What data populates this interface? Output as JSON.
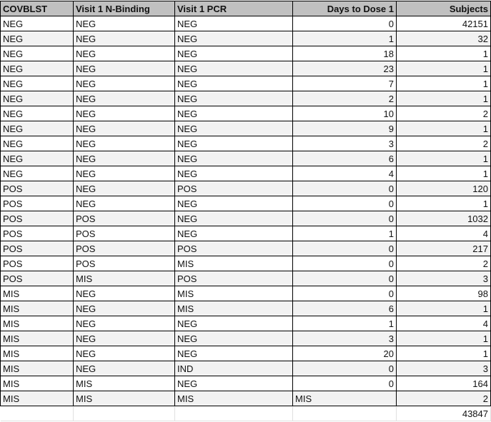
{
  "headers": [
    "COVBLST",
    "Visit 1 N-Binding",
    "Visit 1 PCR",
    "Days to Dose 1",
    "Subjects"
  ],
  "rows": [
    [
      "NEG",
      "NEG",
      "NEG",
      "0",
      "42151"
    ],
    [
      "NEG",
      "NEG",
      "NEG",
      "1",
      "32"
    ],
    [
      "NEG",
      "NEG",
      "NEG",
      "18",
      "1"
    ],
    [
      "NEG",
      "NEG",
      "NEG",
      "23",
      "1"
    ],
    [
      "NEG",
      "NEG",
      "NEG",
      "7",
      "1"
    ],
    [
      "NEG",
      "NEG",
      "NEG",
      "2",
      "1"
    ],
    [
      "NEG",
      "NEG",
      "NEG",
      "10",
      "2"
    ],
    [
      "NEG",
      "NEG",
      "NEG",
      "9",
      "1"
    ],
    [
      "NEG",
      "NEG",
      "NEG",
      "3",
      "2"
    ],
    [
      "NEG",
      "NEG",
      "NEG",
      "6",
      "1"
    ],
    [
      "NEG",
      "NEG",
      "NEG",
      "4",
      "1"
    ],
    [
      "POS",
      "NEG",
      "POS",
      "0",
      "120"
    ],
    [
      "POS",
      "NEG",
      "NEG",
      "0",
      "1"
    ],
    [
      "POS",
      "POS",
      "NEG",
      "0",
      "1032"
    ],
    [
      "POS",
      "POS",
      "NEG",
      "1",
      "4"
    ],
    [
      "POS",
      "POS",
      "POS",
      "0",
      "217"
    ],
    [
      "POS",
      "POS",
      "MIS",
      "0",
      "2"
    ],
    [
      "POS",
      "MIS",
      "POS",
      "0",
      "3"
    ],
    [
      "MIS",
      "NEG",
      "MIS",
      "0",
      "98"
    ],
    [
      "MIS",
      "NEG",
      "MIS",
      "6",
      "1"
    ],
    [
      "MIS",
      "NEG",
      "NEG",
      "1",
      "4"
    ],
    [
      "MIS",
      "NEG",
      "NEG",
      "3",
      "1"
    ],
    [
      "MIS",
      "NEG",
      "NEG",
      "20",
      "1"
    ],
    [
      "MIS",
      "NEG",
      "IND",
      "0",
      "3"
    ],
    [
      "MIS",
      "MIS",
      "NEG",
      "0",
      "164"
    ],
    [
      "MIS",
      "MIS",
      "MIS",
      "MIS",
      "2"
    ]
  ],
  "total": "43847"
}
